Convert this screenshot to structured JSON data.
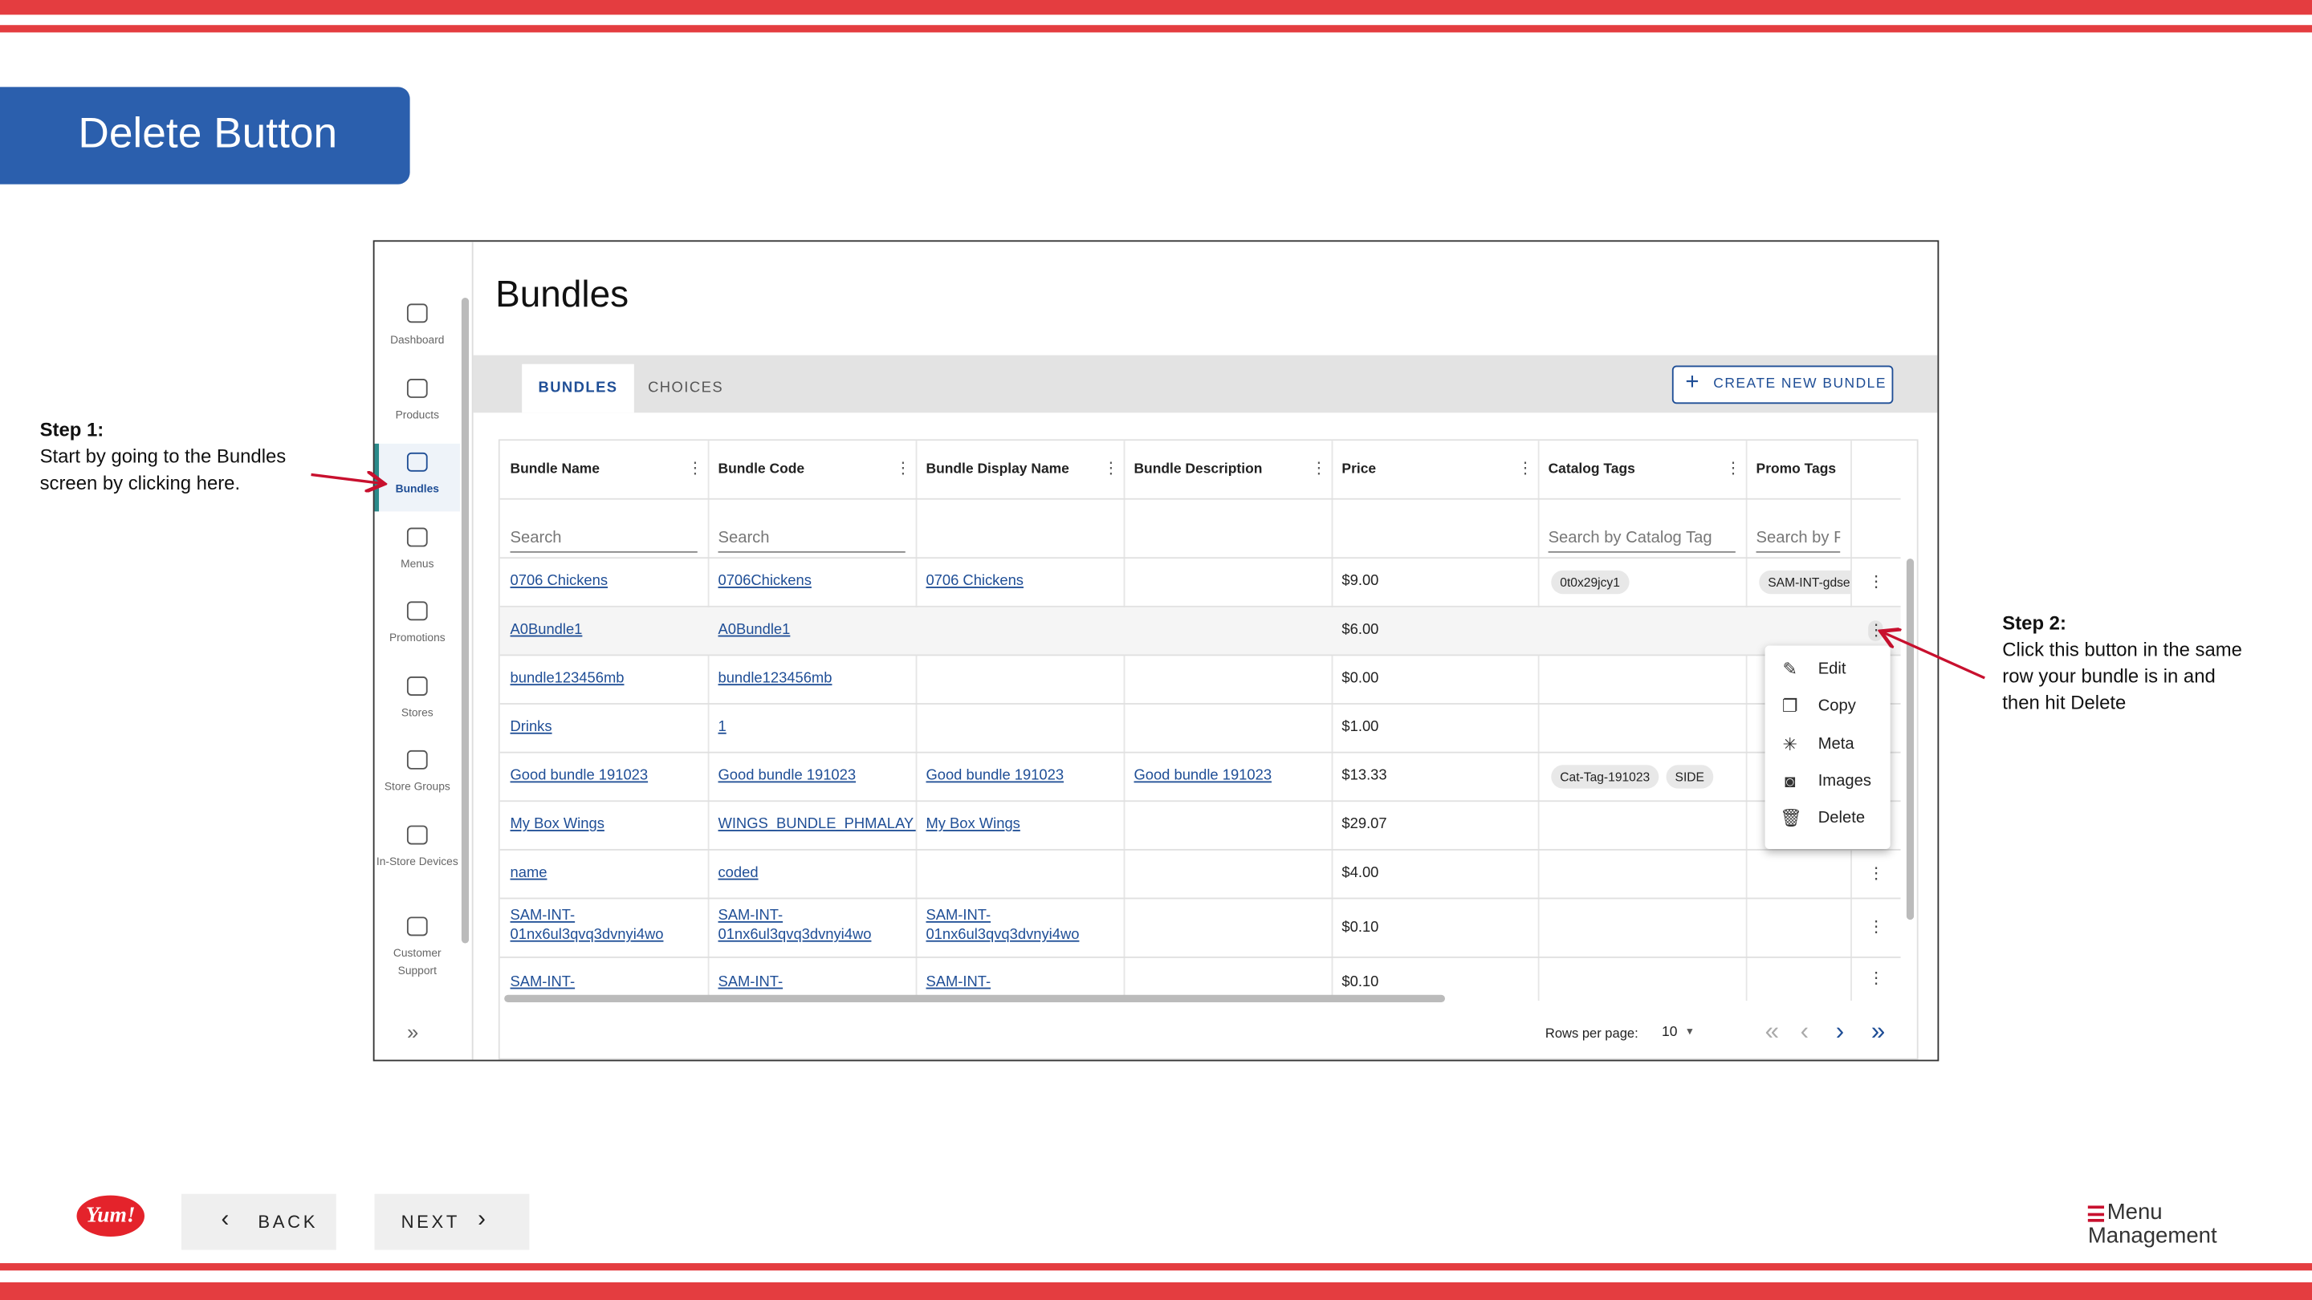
{
  "header": {
    "title": "Delete Button"
  },
  "steps": [
    {
      "title": "Step 1:",
      "text": "Start by going to the Bundles screen by clicking here."
    },
    {
      "title": "Step 2:",
      "text": "Click this  button in the same row your bundle is in and then hit Delete"
    }
  ],
  "sidebar": [
    "Dashboard",
    "Products",
    "Bundles",
    "Menus",
    "Promotions",
    "Stores",
    "Store Groups",
    "In-Store Devices",
    "Customer Support"
  ],
  "page": {
    "title": "Bundles",
    "tabs": [
      "BUNDLES",
      "CHOICES"
    ],
    "create_button": "CREATE NEW BUNDLE"
  },
  "table": {
    "columns": [
      "Bundle Name",
      "Bundle Code",
      "Bundle Display Name",
      "Bundle Description",
      "Price",
      "Catalog Tags",
      "Promo Tags"
    ],
    "search": [
      "Search",
      "Search",
      null,
      null,
      null,
      "Search by Catalog Tag",
      "Search by Pr"
    ],
    "rows": [
      {
        "cells": [
          "0706 Chickens",
          "0706Chickens",
          "0706 Chickens",
          "",
          "$9.00"
        ],
        "catalog_tags": [
          "0t0x29jcy1"
        ],
        "promo_tags": [
          "SAM-INT-gdse"
        ]
      },
      {
        "cells": [
          "A0Bundle1",
          "A0Bundle1",
          "",
          "",
          "$6.00"
        ],
        "catalog_tags": [],
        "promo_tags": []
      },
      {
        "cells": [
          "bundle123456mb",
          "bundle123456mb",
          "",
          "",
          "$0.00"
        ],
        "catalog_tags": [],
        "promo_tags": []
      },
      {
        "cells": [
          "Drinks",
          "1",
          "",
          "",
          "$1.00"
        ],
        "catalog_tags": [],
        "promo_tags": []
      },
      {
        "cells": [
          "Good bundle 191023",
          "Good bundle 191023",
          "Good bundle 191023",
          "Good bundle 191023",
          "$13.33"
        ],
        "catalog_tags": [
          "Cat-Tag-191023",
          "SIDE"
        ],
        "promo_tags": []
      },
      {
        "cells": [
          "My Box Wings",
          "WINGS_BUNDLE_PHMALAY_C",
          "My Box Wings",
          "",
          "$29.07"
        ],
        "catalog_tags": [],
        "promo_tags": []
      },
      {
        "cells": [
          "name",
          "coded",
          "",
          "",
          "$4.00"
        ],
        "catalog_tags": [],
        "promo_tags": []
      },
      {
        "cells": [
          "SAM-INT-01nx6ul3qvq3dvnyi4wo",
          "SAM-INT-01nx6ul3qvq3dvnyi4wo",
          "SAM-INT-01nx6ul3qvq3dvnyi4wo",
          "",
          "$0.10"
        ],
        "catalog_tags": [],
        "promo_tags": []
      },
      {
        "cells": [
          "SAM-INT-",
          "SAM-INT-",
          "SAM-INT-",
          "",
          "$0.10"
        ],
        "catalog_tags": [],
        "promo_tags": []
      }
    ],
    "menu": [
      "Edit",
      "Copy",
      "Meta",
      "Images",
      "Delete"
    ],
    "pagination": {
      "label": "Rows per page:",
      "value": "10"
    }
  },
  "footer": {
    "back": "BACK",
    "next": "NEXT",
    "logo": "Yum!",
    "brand": [
      "Menu",
      "Management"
    ]
  }
}
